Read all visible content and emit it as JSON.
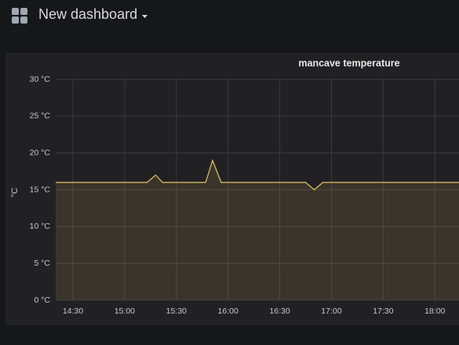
{
  "header": {
    "title": "New dashboard"
  },
  "chart_data": {
    "type": "line",
    "title": "mancave temperature",
    "ylabel": "°C",
    "x": [
      "14:20",
      "15:13",
      "15:18",
      "15:22",
      "15:47",
      "15:51",
      "15:56",
      "16:45",
      "16:50",
      "16:55",
      "18:14"
    ],
    "values": [
      16,
      16,
      17,
      16,
      16,
      19,
      16,
      16,
      15,
      16,
      16
    ],
    "color": "#e5c35f",
    "area": true,
    "grid": true,
    "xlim": [
      "14:20",
      "18:14"
    ],
    "xticks": [
      "14:30",
      "15:00",
      "15:30",
      "16:00",
      "16:30",
      "17:00",
      "17:30",
      "18:00"
    ],
    "ylim": [
      0,
      30
    ],
    "yticks": [
      {
        "value": 0,
        "label": "0 °C"
      },
      {
        "value": 5,
        "label": "5 °C"
      },
      {
        "value": 10,
        "label": "10 °C"
      },
      {
        "value": 15,
        "label": "15 °C"
      },
      {
        "value": 20,
        "label": "20 °C"
      },
      {
        "value": 25,
        "label": "25 °C"
      },
      {
        "value": 30,
        "label": "30 °C"
      }
    ]
  }
}
